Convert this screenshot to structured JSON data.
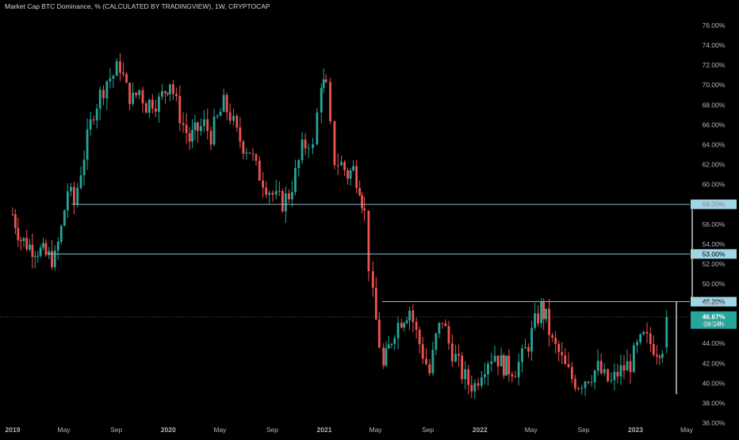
{
  "header": {
    "title": "Market Cap BTC Dominance, % (CALCULATED BY TRADINGVIEW), 1W, CRYPTOCAP"
  },
  "colors": {
    "background": "#000000",
    "up": "#26a69a",
    "down": "#ef5350",
    "level_line": "#8fb8c8",
    "label_bg": "#9fd6e6",
    "price_badge": "#26a69a",
    "axis_text": "#b2b5be",
    "measure_line": "#c8c8c8",
    "dotted_price": "#555555"
  },
  "chart_data": {
    "type": "candlestick",
    "ylim": [
      35.8,
      76.8
    ],
    "y_ticks": [
      "36.00%",
      "38.00%",
      "40.00%",
      "42.00%",
      "44.00%",
      "46.00%",
      "48.00%",
      "50.00%",
      "52.00%",
      "54.00%",
      "56.00%",
      "58.00%",
      "60.00%",
      "62.00%",
      "64.00%",
      "66.00%",
      "68.00%",
      "70.00%",
      "72.00%",
      "74.00%",
      "76.00%"
    ],
    "x_ticks": [
      "2019",
      "May",
      "Sep",
      "2020",
      "May",
      "Sep",
      "2021",
      "May",
      "Sep",
      "2022",
      "May",
      "Sep",
      "2023",
      "May"
    ],
    "levels": [
      {
        "label": "58.00%",
        "value": 58.0
      },
      {
        "label": "53.00%",
        "value": 53.0
      },
      {
        "label": "48.20%",
        "value": 48.2
      }
    ],
    "current_price": {
      "label": "46.67%",
      "value": 46.67,
      "countdown": "2d 14h"
    },
    "measure_lines": [
      {
        "from": 57.5,
        "to": 48.2
      },
      {
        "from": 48.2,
        "to": 38.9
      }
    ],
    "series": [
      {
        "t": "2019-01-01",
        "close": 57.0
      },
      {
        "t": "2019-01-20",
        "close": 54.5
      },
      {
        "t": "2019-02-10",
        "close": 53.8
      },
      {
        "t": "2019-03-01",
        "close": 53.5
      },
      {
        "t": "2019-03-20",
        "close": 52.8
      },
      {
        "t": "2019-04-10",
        "close": 52.5
      },
      {
        "t": "2019-04-25",
        "close": 55.5
      },
      {
        "t": "2019-05-10",
        "close": 59.5
      },
      {
        "t": "2019-05-25",
        "close": 58.0
      },
      {
        "t": "2019-06-10",
        "close": 61.5
      },
      {
        "t": "2019-06-25",
        "close": 64.5
      },
      {
        "t": "2019-07-10",
        "close": 67.5
      },
      {
        "t": "2019-07-25",
        "close": 69.0
      },
      {
        "t": "2019-08-10",
        "close": 70.5
      },
      {
        "t": "2019-08-25",
        "close": 71.0
      },
      {
        "t": "2019-09-10",
        "close": 72.0
      },
      {
        "t": "2019-09-25",
        "close": 69.5
      },
      {
        "t": "2019-10-10",
        "close": 68.5
      },
      {
        "t": "2019-10-25",
        "close": 69.5
      },
      {
        "t": "2019-11-10",
        "close": 68.0
      },
      {
        "t": "2019-11-25",
        "close": 68.5
      },
      {
        "t": "2019-12-10",
        "close": 68.3
      },
      {
        "t": "2019-12-25",
        "close": 69.5
      },
      {
        "t": "2020-01-05",
        "close": 70.5
      },
      {
        "t": "2020-01-20",
        "close": 68.0
      },
      {
        "t": "2020-02-05",
        "close": 66.0
      },
      {
        "t": "2020-02-20",
        "close": 64.5
      },
      {
        "t": "2020-03-10",
        "close": 65.5
      },
      {
        "t": "2020-03-25",
        "close": 66.0
      },
      {
        "t": "2020-04-10",
        "close": 65.0
      },
      {
        "t": "2020-04-25",
        "close": 66.5
      },
      {
        "t": "2020-05-10",
        "close": 68.0
      },
      {
        "t": "2020-05-25",
        "close": 67.0
      },
      {
        "t": "2020-06-10",
        "close": 65.0
      },
      {
        "t": "2020-06-25",
        "close": 64.0
      },
      {
        "t": "2020-07-10",
        "close": 63.5
      },
      {
        "t": "2020-07-25",
        "close": 61.5
      },
      {
        "t": "2020-08-10",
        "close": 60.5
      },
      {
        "t": "2020-08-25",
        "close": 59.5
      },
      {
        "t": "2020-09-10",
        "close": 58.5
      },
      {
        "t": "2020-09-25",
        "close": 58.2
      },
      {
        "t": "2020-10-10",
        "close": 59.0
      },
      {
        "t": "2020-10-25",
        "close": 61.0
      },
      {
        "t": "2020-11-10",
        "close": 63.5
      },
      {
        "t": "2020-11-25",
        "close": 64.5
      },
      {
        "t": "2020-12-05",
        "close": 63.5
      },
      {
        "t": "2020-12-15",
        "close": 67.0
      },
      {
        "t": "2020-12-25",
        "close": 70.5
      },
      {
        "t": "2021-01-05",
        "close": 69.5
      },
      {
        "t": "2021-01-15",
        "close": 65.5
      },
      {
        "t": "2021-01-25",
        "close": 62.5
      },
      {
        "t": "2021-02-10",
        "close": 62.0
      },
      {
        "t": "2021-02-25",
        "close": 61.0
      },
      {
        "t": "2021-03-10",
        "close": 61.5
      },
      {
        "t": "2021-03-25",
        "close": 60.0
      },
      {
        "t": "2021-04-05",
        "close": 57.0
      },
      {
        "t": "2021-04-15",
        "close": 52.0
      },
      {
        "t": "2021-04-25",
        "close": 48.5
      },
      {
        "t": "2021-05-10",
        "close": 44.0
      },
      {
        "t": "2021-05-20",
        "close": 41.5
      },
      {
        "t": "2021-06-01",
        "close": 43.5
      },
      {
        "t": "2021-06-15",
        "close": 45.5
      },
      {
        "t": "2021-07-01",
        "close": 46.5
      },
      {
        "t": "2021-07-20",
        "close": 47.5
      },
      {
        "t": "2021-08-05",
        "close": 45.0
      },
      {
        "t": "2021-08-20",
        "close": 43.0
      },
      {
        "t": "2021-09-05",
        "close": 41.0
      },
      {
        "t": "2021-09-20",
        "close": 44.5
      },
      {
        "t": "2021-10-05",
        "close": 46.5
      },
      {
        "t": "2021-10-20",
        "close": 44.0
      },
      {
        "t": "2021-11-05",
        "close": 42.5
      },
      {
        "t": "2021-11-20",
        "close": 41.0
      },
      {
        "t": "2021-12-05",
        "close": 40.0
      },
      {
        "t": "2021-12-20",
        "close": 39.8
      },
      {
        "t": "2022-01-05",
        "close": 41.5
      },
      {
        "t": "2022-01-20",
        "close": 42.5
      },
      {
        "t": "2022-02-05",
        "close": 43.0
      },
      {
        "t": "2022-02-20",
        "close": 42.0
      },
      {
        "t": "2022-03-10",
        "close": 41.5
      },
      {
        "t": "2022-03-25",
        "close": 41.5
      },
      {
        "t": "2022-04-10",
        "close": 42.5
      },
      {
        "t": "2022-04-25",
        "close": 44.0
      },
      {
        "t": "2022-05-10",
        "close": 46.0
      },
      {
        "t": "2022-05-25",
        "close": 47.5
      },
      {
        "t": "2022-06-05",
        "close": 46.5
      },
      {
        "t": "2022-06-20",
        "close": 44.0
      },
      {
        "t": "2022-07-05",
        "close": 43.0
      },
      {
        "t": "2022-07-20",
        "close": 41.5
      },
      {
        "t": "2022-08-05",
        "close": 40.5
      },
      {
        "t": "2022-08-20",
        "close": 40.0
      },
      {
        "t": "2022-09-05",
        "close": 40.5
      },
      {
        "t": "2022-09-20",
        "close": 41.0
      },
      {
        "t": "2022-10-05",
        "close": 41.5
      },
      {
        "t": "2022-10-20",
        "close": 40.5
      },
      {
        "t": "2022-11-05",
        "close": 40.0
      },
      {
        "t": "2022-11-20",
        "close": 41.0
      },
      {
        "t": "2022-12-05",
        "close": 41.5
      },
      {
        "t": "2022-12-20",
        "close": 42.0
      },
      {
        "t": "2023-01-05",
        "close": 43.5
      },
      {
        "t": "2023-01-20",
        "close": 44.5
      },
      {
        "t": "2023-02-05",
        "close": 44.0
      },
      {
        "t": "2023-02-20",
        "close": 43.5
      },
      {
        "t": "2023-03-05",
        "close": 43.8
      },
      {
        "t": "2023-03-15",
        "close": 46.67
      }
    ]
  }
}
